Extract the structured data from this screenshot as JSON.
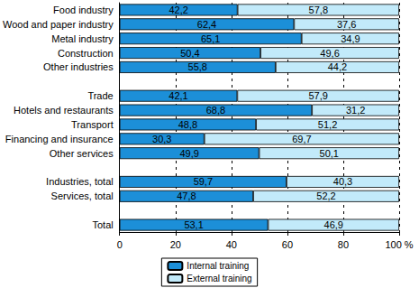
{
  "chart_data": {
    "type": "bar",
    "orientation": "horizontal",
    "stacked": true,
    "data_labels": true,
    "grid": true,
    "legend": "bottom",
    "categories": [
      "Food industry",
      "Wood and paper industry",
      "Metal industry",
      "Construction",
      "Other industries",
      null,
      "Trade",
      "Hotels and restaurants",
      "Transport",
      "Financing and insurance",
      "Other services",
      null,
      "Industries, total",
      "Services, total",
      null,
      "Total"
    ],
    "series": [
      {
        "name": "Internal training",
        "color": "#1c8fd8",
        "values": [
          42.2,
          62.4,
          65.1,
          50.4,
          55.8,
          null,
          42.1,
          68.8,
          48.8,
          30.3,
          49.9,
          null,
          59.7,
          47.8,
          null,
          53.1
        ],
        "value_labels": [
          "42,2",
          "62,4",
          "65,1",
          "50,4",
          "55,8",
          null,
          "42,1",
          "68,8",
          "48,8",
          "30,3",
          "49,9",
          null,
          "59,7",
          "47,8",
          null,
          "53,1"
        ]
      },
      {
        "name": "External training",
        "color": "#c2eafa",
        "values": [
          57.8,
          37.6,
          34.9,
          49.6,
          44.2,
          null,
          57.9,
          31.2,
          51.2,
          69.7,
          50.1,
          null,
          40.3,
          52.2,
          null,
          46.9
        ],
        "value_labels": [
          "57,8",
          "37,6",
          "34,9",
          "49,6",
          "44,2",
          null,
          "57,9",
          "31,2",
          "51,2",
          "69,7",
          "50,1",
          null,
          "40,3",
          "52,2",
          null,
          "46,9"
        ]
      }
    ],
    "xlim": [
      0,
      100
    ],
    "xticks": [
      0,
      20,
      40,
      60,
      80,
      {
        "value": 100,
        "label": "100 %"
      }
    ]
  }
}
